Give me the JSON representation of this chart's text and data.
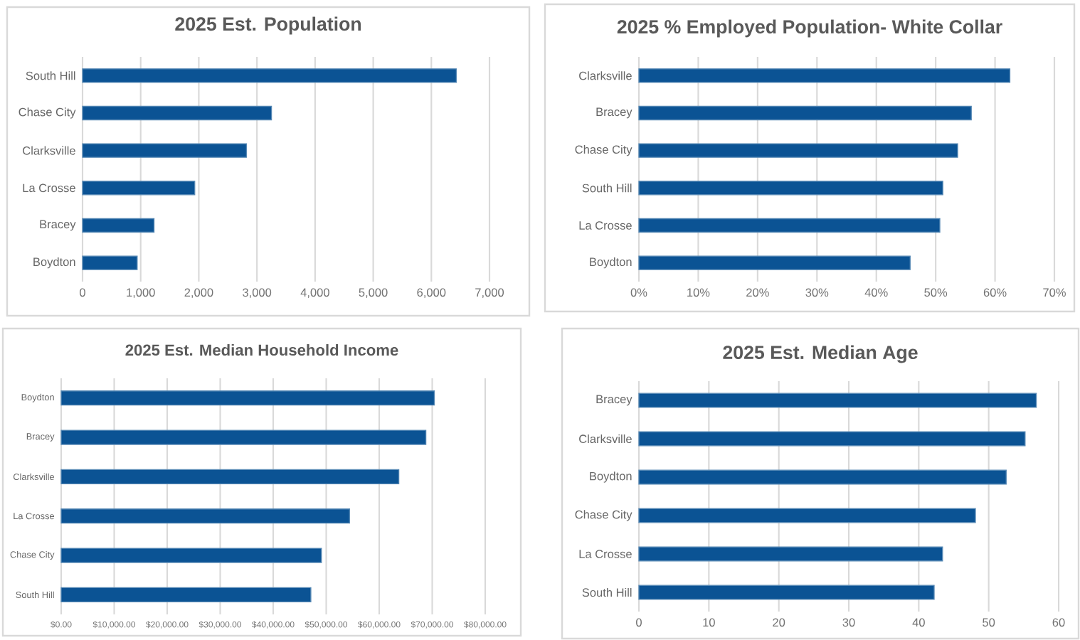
{
  "chart_data": [
    {
      "type": "bar",
      "orientation": "horizontal",
      "title": "2025 Est. Population",
      "categories": [
        "South Hill",
        "Chase City",
        "Clarksville",
        "La Crosse",
        "Bracey",
        "Boydton"
      ],
      "values": [
        6430,
        3250,
        2820,
        1930,
        1230,
        940
      ],
      "color": "#0b5394",
      "xlim": [
        0,
        7000
      ],
      "xticks": [
        0,
        {
          "value": 1000,
          "label": "1,000"
        },
        {
          "value": 2000,
          "label": "2,000"
        },
        {
          "value": 3000,
          "label": "3,000"
        },
        {
          "value": 4000,
          "label": "4,000"
        },
        {
          "value": 5000,
          "label": "5,000"
        },
        {
          "value": 6000,
          "label": "6,000"
        },
        {
          "value": 7000,
          "label": "7,000"
        }
      ],
      "grid": "x"
    },
    {
      "type": "bar",
      "orientation": "horizontal",
      "title": "2025 % Employed Population- White Collar",
      "categories": [
        "Clarksville",
        "Bracey",
        "Chase City",
        "South Hill",
        "La Crosse",
        "Boydton"
      ],
      "values": [
        62.5,
        56.0,
        53.7,
        51.2,
        50.7,
        45.7
      ],
      "color": "#0b5394",
      "xlim": [
        0,
        70
      ],
      "xticks": [
        {
          "value": 0,
          "label": "0%"
        },
        {
          "value": 10,
          "label": "10%"
        },
        {
          "value": 20,
          "label": "20%"
        },
        {
          "value": 30,
          "label": "30%"
        },
        {
          "value": 40,
          "label": "40%"
        },
        {
          "value": 50,
          "label": "50%"
        },
        {
          "value": 60,
          "label": "60%"
        },
        {
          "value": 70,
          "label": "70%"
        }
      ],
      "grid": "x"
    },
    {
      "type": "bar",
      "orientation": "horizontal",
      "title": "2025 Est. Median Household Income",
      "categories": [
        "Boydton",
        "Bracey",
        "Clarksville",
        "La Crosse",
        "Chase City",
        "South Hill"
      ],
      "values": [
        70400,
        68800,
        63700,
        54400,
        49100,
        47100
      ],
      "color": "#0b5394",
      "xlim": [
        0,
        80000
      ],
      "xticks": [
        {
          "value": 0,
          "label": "$0.00"
        },
        {
          "value": 10000,
          "label": "$10,000.00"
        },
        {
          "value": 20000,
          "label": "$20,000.00"
        },
        {
          "value": 30000,
          "label": "$30,000.00"
        },
        {
          "value": 40000,
          "label": "$40,000.00"
        },
        {
          "value": 50000,
          "label": "$50,000.00"
        },
        {
          "value": 60000,
          "label": "$60,000.00"
        },
        {
          "value": 70000,
          "label": "$70,000.00"
        },
        {
          "value": 80000,
          "label": "$80,000.00"
        }
      ],
      "grid": "x"
    },
    {
      "type": "bar",
      "orientation": "horizontal",
      "title": "2025 Est. Median Age",
      "categories": [
        "Bracey",
        "Clarksville",
        "Boydton",
        "Chase City",
        "La Crosse",
        "South Hill"
      ],
      "values": [
        56.8,
        55.2,
        52.5,
        48.1,
        43.4,
        42.2
      ],
      "color": "#0b5394",
      "xlim": [
        0,
        60
      ],
      "xticks": [
        0,
        10,
        20,
        30,
        40,
        50,
        60
      ],
      "grid": "x"
    }
  ]
}
